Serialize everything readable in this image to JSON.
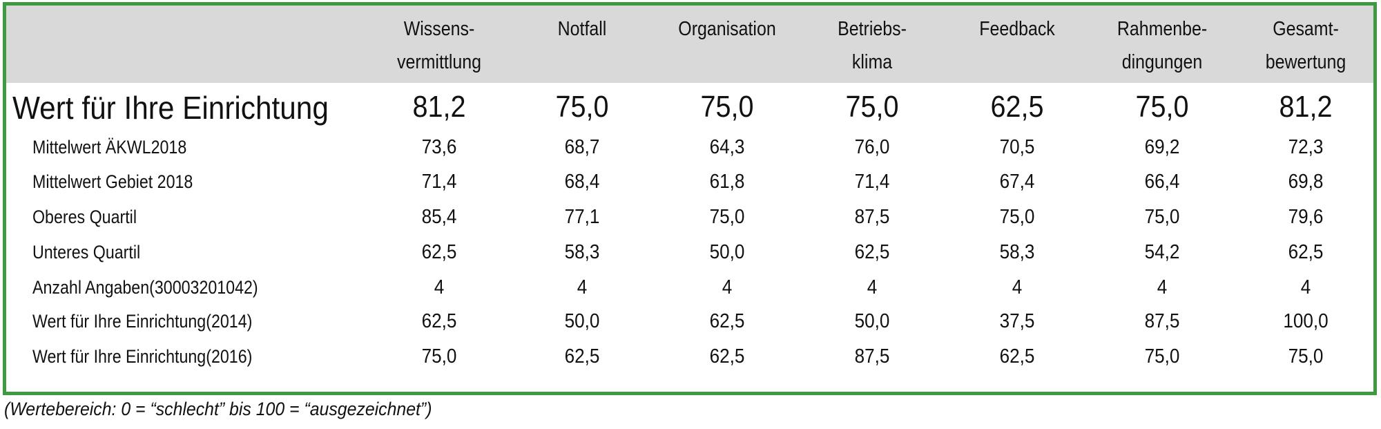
{
  "table": {
    "columns": [
      [
        "Wissens-",
        "vermittlung"
      ],
      [
        "Notfall"
      ],
      [
        "Organisation"
      ],
      [
        "Betriebs-",
        "klima"
      ],
      [
        "Feedback"
      ],
      [
        "Rahmenbe-",
        "dingungen"
      ],
      [
        "Gesamt-",
        "bewertung"
      ]
    ],
    "main_row": {
      "label": "Wert für Ihre Einrichtung",
      "values": [
        "81,2",
        "75,0",
        "75,0",
        "75,0",
        "62,5",
        "75,0",
        "81,2"
      ]
    },
    "rows": [
      {
        "label": "Mittelwert ÄKWL2018",
        "values": [
          "73,6",
          "68,7",
          "64,3",
          "76,0",
          "70,5",
          "69,2",
          "72,3"
        ]
      },
      {
        "label": "Mittelwert Gebiet 2018",
        "values": [
          "71,4",
          "68,4",
          "61,8",
          "71,4",
          "67,4",
          "66,4",
          "69,8"
        ]
      },
      {
        "label": "Oberes Quartil",
        "values": [
          "85,4",
          "77,1",
          "75,0",
          "87,5",
          "75,0",
          "75,0",
          "79,6"
        ]
      },
      {
        "label": "Unteres Quartil",
        "values": [
          "62,5",
          "58,3",
          "50,0",
          "62,5",
          "58,3",
          "54,2",
          "62,5"
        ]
      },
      {
        "label": "Anzahl Angaben(30003201042)",
        "values": [
          "4",
          "4",
          "4",
          "4",
          "4",
          "4",
          "4"
        ]
      },
      {
        "label": "Wert für Ihre Einrichtung(2014)",
        "values": [
          "62,5",
          "50,0",
          "62,5",
          "50,0",
          "37,5",
          "87,5",
          "100,0"
        ]
      },
      {
        "label": "Wert für Ihre Einrichtung(2016)",
        "values": [
          "75,0",
          "62,5",
          "62,5",
          "87,5",
          "62,5",
          "75,0",
          "75,0"
        ]
      }
    ]
  },
  "footnote": "(Wertebereich: 0 = “schlecht” bis 100 = “ausgezeichnet”)",
  "colors": {
    "border": "#3d9a41",
    "header_background": "#d9d9d9"
  }
}
